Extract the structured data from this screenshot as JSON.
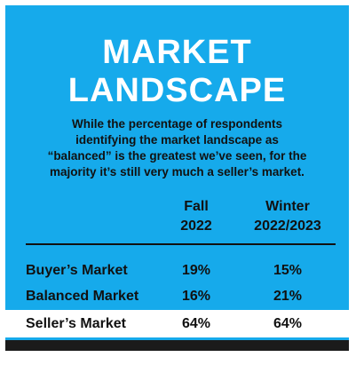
{
  "title": {
    "line1": "MARKET",
    "line2": "LANDSCAPE"
  },
  "description": {
    "line1": "While the percentage of respondents",
    "line2": "identifying the market landscape as",
    "line3": "“balanced” is the greatest we’ve seen, for the",
    "line4": "majority it’s still very much a seller’s market."
  },
  "table": {
    "columns": [
      {
        "line1": "Fall",
        "line2": "2022"
      },
      {
        "line1": "Winter",
        "line2": "2022/2023"
      }
    ],
    "rows": [
      {
        "label": "Buyer’s Market",
        "fall": "19%",
        "winter": "15%"
      },
      {
        "label": "Balanced Market",
        "fall": "16%",
        "winter": "21%"
      },
      {
        "label": "Seller’s Market",
        "fall": "64%",
        "winter": "64%"
      }
    ],
    "highlighted_row": "Seller’s Market"
  },
  "colors": {
    "background": "#16aaeb",
    "title_text": "#ffffff",
    "body_text": "#111111",
    "highlight_row": "#ffffff",
    "bottom_bar": "#1b1b1b"
  }
}
